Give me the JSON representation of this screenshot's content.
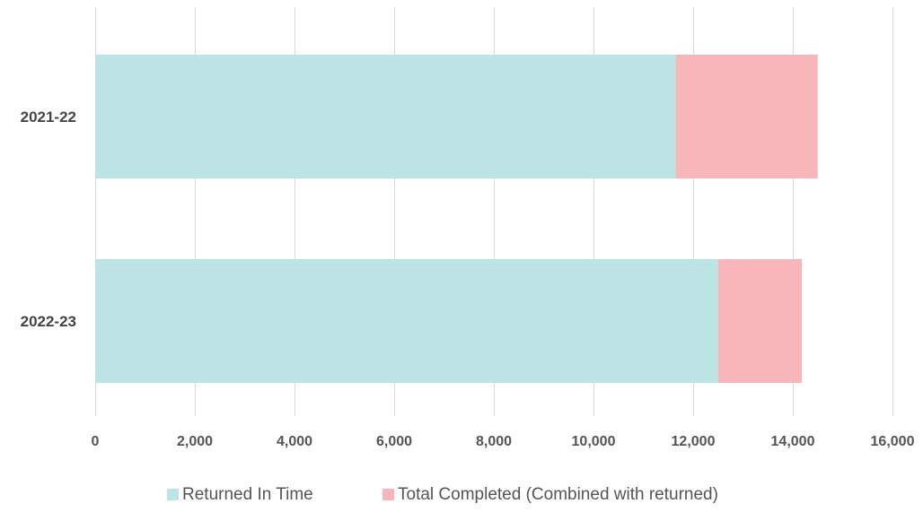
{
  "chart_data": {
    "type": "bar",
    "orientation": "horizontal",
    "stacked": true,
    "categories": [
      "2021-22",
      "2022-23"
    ],
    "series": [
      {
        "name": "Returned In Time",
        "values": [
          11650,
          12500
        ],
        "color": "#bde4e4"
      },
      {
        "name": "Total Completed (Combined with returned)",
        "values": [
          2850,
          1680
        ],
        "color": "#f8b6ba"
      }
    ],
    "xlim": [
      0,
      16000
    ],
    "xticks": [
      0,
      2000,
      4000,
      6000,
      8000,
      10000,
      12000,
      14000,
      16000
    ],
    "xtick_labels": [
      "0",
      "2,000",
      "4,000",
      "6,000",
      "8,000",
      "10,000",
      "12,000",
      "14,000",
      "16,000"
    ],
    "grid": true,
    "legend_position": "bottom",
    "title": "",
    "xlabel": "",
    "ylabel": ""
  }
}
